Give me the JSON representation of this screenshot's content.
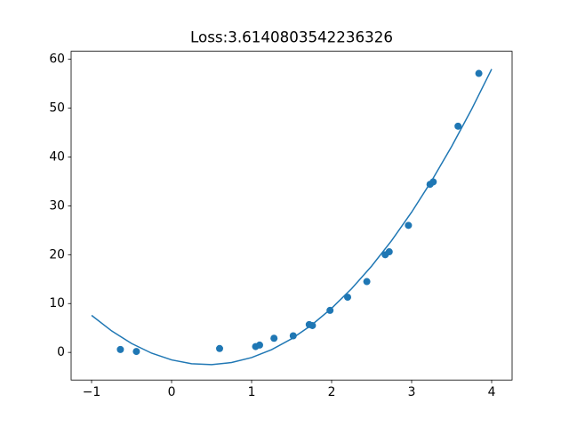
{
  "chart_data": {
    "type": "scatter",
    "title": "Loss:3.6140803542236326",
    "xlim": [
      -1.2556,
      4.2556
    ],
    "ylim": [
      -5.65,
      61.64
    ],
    "xticks": [
      {
        "value": -1,
        "label": "−1"
      },
      0,
      1,
      2,
      3,
      4
    ],
    "yticks": [
      0,
      10,
      20,
      30,
      40,
      50,
      60
    ],
    "series": [
      {
        "type": "scatter",
        "color": "#1f77b4",
        "x": [
          -0.64,
          -0.44,
          0.6,
          1.05,
          1.1,
          1.28,
          1.52,
          1.72,
          1.76,
          1.98,
          2.2,
          2.44,
          2.67,
          2.72,
          2.96,
          3.23,
          3.27,
          3.58,
          3.84
        ],
        "values": [
          0.6,
          0.2,
          0.8,
          1.2,
          1.5,
          2.9,
          3.4,
          5.7,
          5.5,
          8.6,
          11.3,
          14.5,
          20,
          20.6,
          26,
          34.4,
          34.9,
          46.3,
          57.1
        ]
      },
      {
        "type": "line",
        "color": "#1f77b4",
        "x": [
          -1,
          -0.75,
          -0.5,
          -0.25,
          0,
          0.25,
          0.5,
          0.75,
          1,
          1.25,
          1.5,
          1.75,
          2,
          2.25,
          2.5,
          2.75,
          3,
          3.25,
          3.5,
          3.75,
          4
        ],
        "values": [
          7.59,
          4.41,
          1.83,
          -0.15,
          -1.53,
          -2.31,
          -2.49,
          -2.07,
          -1.05,
          0.57,
          2.79,
          5.61,
          9.03,
          13.05,
          17.67,
          22.89,
          28.71,
          35.13,
          42.15,
          49.77,
          57.99
        ]
      }
    ]
  }
}
